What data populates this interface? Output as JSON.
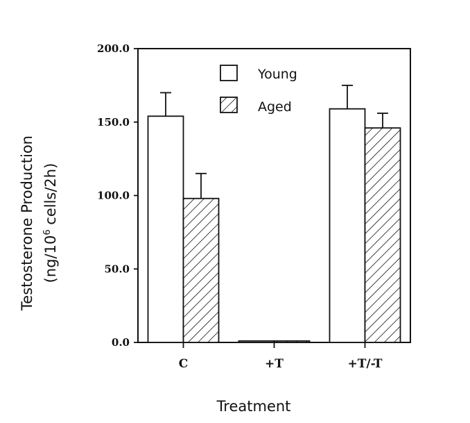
{
  "chart_data": {
    "type": "bar",
    "categories": [
      "C",
      "+T",
      "+T/-T"
    ],
    "series": [
      {
        "name": "Young",
        "values": [
          154,
          1,
          159
        ],
        "errors": [
          16,
          0,
          16
        ],
        "pattern": "open"
      },
      {
        "name": "Aged",
        "values": [
          98,
          1,
          146
        ],
        "errors": [
          17,
          0,
          10
        ],
        "pattern": "hatched"
      }
    ],
    "ylim": [
      0,
      200
    ],
    "yticks": [
      "0.0",
      "50.0",
      "100.0",
      "150.0",
      "200.0"
    ],
    "ylabel_line1": "Testosterone Production",
    "ylabel_prefix": "(ng/10",
    "ylabel_sup": "6",
    "ylabel_suffix": " cells/2h)",
    "xlabel": "Treatment",
    "legend": [
      "Young",
      "Aged"
    ],
    "legend_position": "top-center",
    "grid": false
  }
}
